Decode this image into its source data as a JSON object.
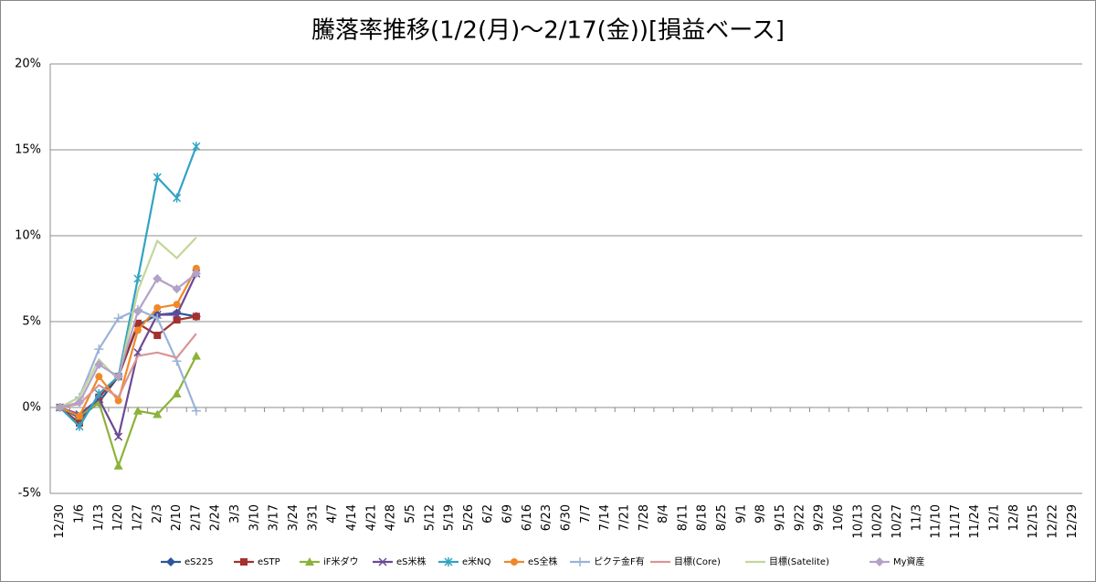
{
  "chart_data": {
    "type": "line",
    "title": "騰落率推移(1/2(月)～2/17(金))[損益ベース]",
    "categories": [
      "12/30",
      "1/6",
      "1/13",
      "1/20",
      "1/27",
      "2/3",
      "2/10",
      "2/17",
      "2/24",
      "3/3",
      "3/10",
      "3/17",
      "3/24",
      "3/31",
      "4/7",
      "4/14",
      "4/21",
      "4/28",
      "5/5",
      "5/12",
      "5/19",
      "5/26",
      "6/2",
      "6/9",
      "6/16",
      "6/23",
      "6/30",
      "7/7",
      "7/14",
      "7/21",
      "7/28",
      "8/4",
      "8/11",
      "8/18",
      "8/25",
      "9/1",
      "9/8",
      "9/15",
      "9/22",
      "9/29",
      "10/6",
      "10/13",
      "10/20",
      "10/27",
      "11/3",
      "11/10",
      "11/17",
      "11/24",
      "12/1",
      "12/8",
      "12/15",
      "12/22",
      "12/29"
    ],
    "ylim": [
      -5,
      20
    ],
    "yticks": [
      {
        "value": -5,
        "label": "-5%"
      },
      {
        "value": 0,
        "label": "0%"
      },
      {
        "value": 5,
        "label": "5%"
      },
      {
        "value": 10,
        "label": "10%"
      },
      {
        "value": 15,
        "label": "15%"
      },
      {
        "value": 20,
        "label": "20%"
      }
    ],
    "grid": true,
    "legend": "bottom",
    "series": [
      {
        "name": "eS225",
        "color": "#2e5597",
        "marker": "diamond",
        "values": [
          0,
          -0.6,
          0.3,
          1.8,
          4.8,
          5.4,
          5.5,
          5.3,
          null,
          null,
          null,
          null,
          null,
          null,
          null,
          null,
          null,
          null,
          null,
          null,
          null,
          null,
          null,
          null,
          null,
          null,
          null,
          null,
          null,
          null,
          null,
          null,
          null,
          null,
          null,
          null,
          null,
          null,
          null,
          null,
          null,
          null,
          null,
          null,
          null,
          null,
          null,
          null,
          null,
          null,
          null,
          null,
          null
        ]
      },
      {
        "name": "eSTP",
        "color": "#a5302e",
        "marker": "square",
        "values": [
          0,
          -0.9,
          0.6,
          1.8,
          4.9,
          4.2,
          5.1,
          5.3,
          null,
          null,
          null,
          null,
          null,
          null,
          null,
          null,
          null,
          null,
          null,
          null,
          null,
          null,
          null,
          null,
          null,
          null,
          null,
          null,
          null,
          null,
          null,
          null,
          null,
          null,
          null,
          null,
          null,
          null,
          null,
          null,
          null,
          null,
          null,
          null,
          null,
          null,
          null,
          null,
          null,
          null,
          null,
          null,
          null
        ]
      },
      {
        "name": "iF米ダウ",
        "color": "#8cb23a",
        "marker": "triangle",
        "values": [
          0,
          -0.5,
          0.3,
          -3.4,
          -0.2,
          -0.4,
          0.8,
          3.0,
          null,
          null,
          null,
          null,
          null,
          null,
          null,
          null,
          null,
          null,
          null,
          null,
          null,
          null,
          null,
          null,
          null,
          null,
          null,
          null,
          null,
          null,
          null,
          null,
          null,
          null,
          null,
          null,
          null,
          null,
          null,
          null,
          null,
          null,
          null,
          null,
          null,
          null,
          null,
          null,
          null,
          null,
          null,
          null,
          null
        ]
      },
      {
        "name": "eS米株",
        "color": "#6b4a94",
        "marker": "x",
        "values": [
          0,
          -0.4,
          0.5,
          -1.7,
          3.2,
          5.4,
          5.4,
          7.8,
          null,
          null,
          null,
          null,
          null,
          null,
          null,
          null,
          null,
          null,
          null,
          null,
          null,
          null,
          null,
          null,
          null,
          null,
          null,
          null,
          null,
          null,
          null,
          null,
          null,
          null,
          null,
          null,
          null,
          null,
          null,
          null,
          null,
          null,
          null,
          null,
          null,
          null,
          null,
          null,
          null,
          null,
          null,
          null,
          null
        ]
      },
      {
        "name": "e米NQ",
        "color": "#31a3c4",
        "marker": "star",
        "values": [
          0,
          -1.1,
          0.8,
          1.8,
          7.5,
          13.4,
          12.2,
          15.2,
          null,
          null,
          null,
          null,
          null,
          null,
          null,
          null,
          null,
          null,
          null,
          null,
          null,
          null,
          null,
          null,
          null,
          null,
          null,
          null,
          null,
          null,
          null,
          null,
          null,
          null,
          null,
          null,
          null,
          null,
          null,
          null,
          null,
          null,
          null,
          null,
          null,
          null,
          null,
          null,
          null,
          null,
          null,
          null,
          null
        ]
      },
      {
        "name": "eS全株",
        "color": "#f0882a",
        "marker": "circle",
        "values": [
          0,
          -0.5,
          1.8,
          0.4,
          4.5,
          5.8,
          6.0,
          8.1,
          null,
          null,
          null,
          null,
          null,
          null,
          null,
          null,
          null,
          null,
          null,
          null,
          null,
          null,
          null,
          null,
          null,
          null,
          null,
          null,
          null,
          null,
          null,
          null,
          null,
          null,
          null,
          null,
          null,
          null,
          null,
          null,
          null,
          null,
          null,
          null,
          null,
          null,
          null,
          null,
          null,
          null,
          null,
          null,
          null
        ]
      },
      {
        "name": "ピクテ金F有",
        "color": "#9ab3d9",
        "marker": "plus",
        "values": [
          0,
          0.6,
          3.4,
          5.2,
          5.7,
          5.2,
          2.7,
          -0.2,
          null,
          null,
          null,
          null,
          null,
          null,
          null,
          null,
          null,
          null,
          null,
          null,
          null,
          null,
          null,
          null,
          null,
          null,
          null,
          null,
          null,
          null,
          null,
          null,
          null,
          null,
          null,
          null,
          null,
          null,
          null,
          null,
          null,
          null,
          null,
          null,
          null,
          null,
          null,
          null,
          null,
          null,
          null,
          null,
          null
        ]
      },
      {
        "name": "目標(Core)",
        "color": "#d99594",
        "values": [
          0,
          0.2,
          1.3,
          0.6,
          3.0,
          3.2,
          2.9,
          4.3,
          null,
          null,
          null,
          null,
          null,
          null,
          null,
          null,
          null,
          null,
          null,
          null,
          null,
          null,
          null,
          null,
          null,
          null,
          null,
          null,
          null,
          null,
          null,
          null,
          null,
          null,
          null,
          null,
          null,
          null,
          null,
          null,
          null,
          null,
          null,
          null,
          null,
          null,
          null,
          null,
          null,
          null,
          null,
          null,
          null
        ]
      },
      {
        "name": "目標(Satelite)",
        "color": "#c3d69b",
        "values": [
          0,
          0.6,
          2.8,
          1.6,
          6.8,
          9.7,
          8.7,
          9.9,
          null,
          null,
          null,
          null,
          null,
          null,
          null,
          null,
          null,
          null,
          null,
          null,
          null,
          null,
          null,
          null,
          null,
          null,
          null,
          null,
          null,
          null,
          null,
          null,
          null,
          null,
          null,
          null,
          null,
          null,
          null,
          null,
          null,
          null,
          null,
          null,
          null,
          null,
          null,
          null,
          null,
          null,
          null,
          null,
          null
        ]
      },
      {
        "name": "My資産",
        "color": "#b3a2c7",
        "marker": "diamond",
        "values": [
          0,
          0.3,
          2.5,
          1.8,
          5.6,
          7.5,
          6.9,
          7.8,
          null,
          null,
          null,
          null,
          null,
          null,
          null,
          null,
          null,
          null,
          null,
          null,
          null,
          null,
          null,
          null,
          null,
          null,
          null,
          null,
          null,
          null,
          null,
          null,
          null,
          null,
          null,
          null,
          null,
          null,
          null,
          null,
          null,
          null,
          null,
          null,
          null,
          null,
          null,
          null,
          null,
          null,
          null,
          null,
          null
        ]
      }
    ]
  }
}
